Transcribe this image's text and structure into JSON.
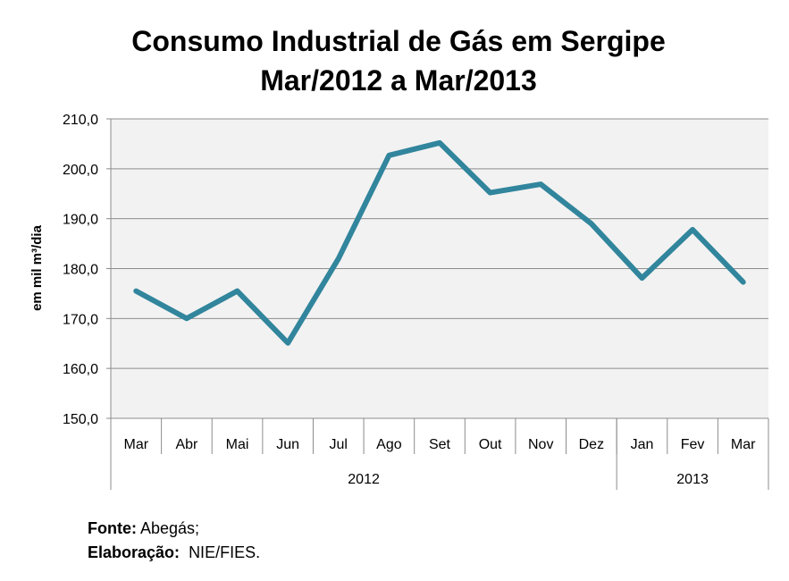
{
  "chart_data": {
    "type": "line",
    "title_line1": "Consumo Industrial de Gás em Sergipe",
    "title_line2": "Mar/2012 a Mar/2013",
    "ylabel": "em mil m³/dia",
    "categories": [
      "Mar",
      "Abr",
      "Mai",
      "Jun",
      "Jul",
      "Ago",
      "Set",
      "Out",
      "Nov",
      "Dez",
      "Jan",
      "Fev",
      "Mar"
    ],
    "year_groups": [
      {
        "label": "2012",
        "count": 10
      },
      {
        "label": "2013",
        "count": 3
      }
    ],
    "series": [
      {
        "values": [
          175.5,
          170.0,
          175.5,
          165.1,
          182.0,
          202.7,
          205.2,
          195.2,
          196.9,
          189.0,
          178.1,
          187.8,
          177.3
        ],
        "color": "#31859c"
      }
    ],
    "ylim": [
      150,
      210
    ],
    "yticks": [
      "150,0",
      "160,0",
      "170,0",
      "180,0",
      "190,0",
      "200,0",
      "210,0"
    ],
    "grid": true,
    "plot_background": "#f2f2f2"
  },
  "notes": {
    "source_label": "Fonte:",
    "source_value": "Abegás;",
    "elab_label": "Elaboração:",
    "elab_value": "NIE/FIES."
  }
}
